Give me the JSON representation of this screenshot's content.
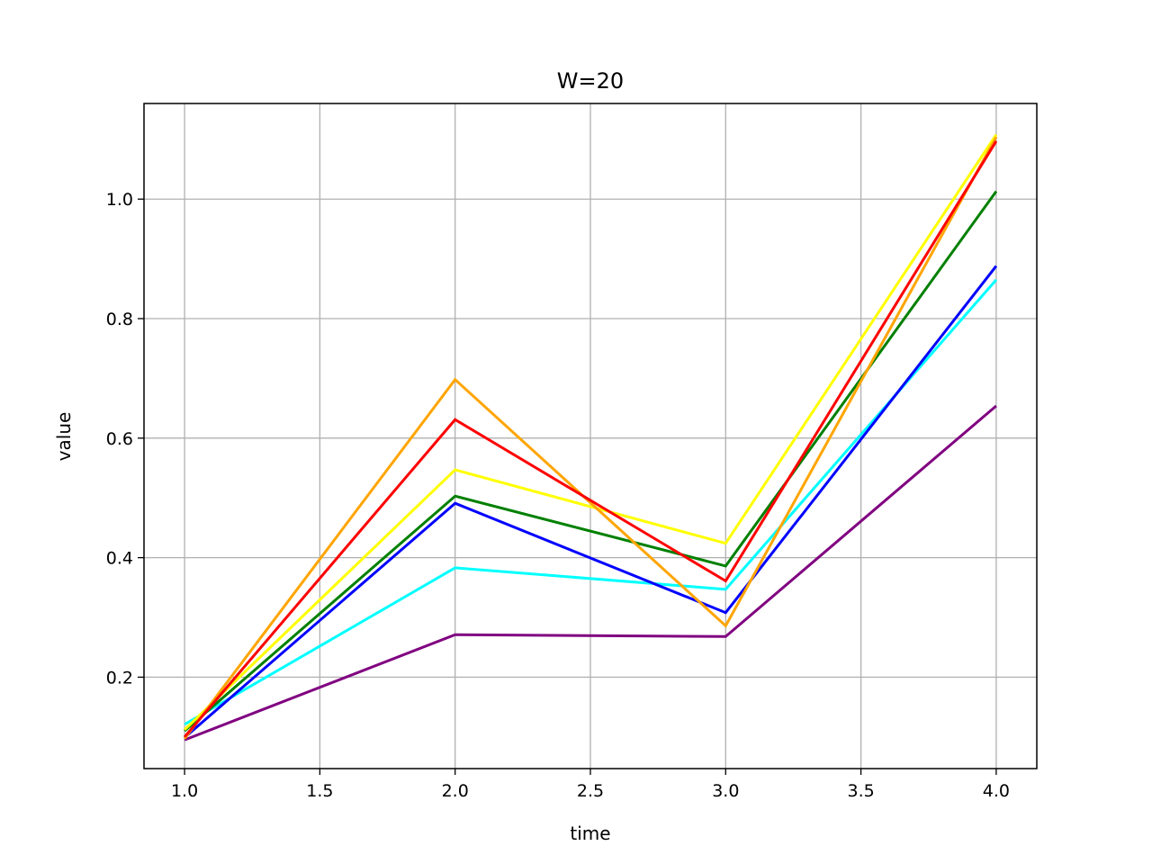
{
  "chart_data": {
    "type": "line",
    "title": "W=20",
    "xlabel": "time",
    "ylabel": "value",
    "x": [
      1.0,
      2.0,
      3.0,
      4.0
    ],
    "xlim": [
      0.85,
      4.15
    ],
    "ylim": [
      0.047,
      1.16
    ],
    "xticks": [
      1.0,
      1.5,
      2.0,
      2.5,
      3.0,
      3.5,
      4.0
    ],
    "xtick_labels": [
      "1.0",
      "1.5",
      "2.0",
      "2.5",
      "3.0",
      "3.5",
      "4.0"
    ],
    "yticks": [
      0.2,
      0.4,
      0.6,
      0.8,
      1.0
    ],
    "ytick_labels": [
      "0.2",
      "0.4",
      "0.6",
      "0.8",
      "1.0"
    ],
    "grid": true,
    "series": [
      {
        "name": "purple",
        "color": "#800080",
        "values": [
          0.095,
          0.271,
          0.268,
          0.654
        ]
      },
      {
        "name": "cyan",
        "color": "#00ffff",
        "values": [
          0.121,
          0.383,
          0.347,
          0.865
        ]
      },
      {
        "name": "blue",
        "color": "#0000ff",
        "values": [
          0.099,
          0.491,
          0.308,
          0.888
        ]
      },
      {
        "name": "green",
        "color": "#008000",
        "values": [
          0.11,
          0.503,
          0.386,
          1.013
        ]
      },
      {
        "name": "yellow",
        "color": "#ffff00",
        "values": [
          0.112,
          0.547,
          0.424,
          1.108
        ]
      },
      {
        "name": "orange",
        "color": "#ffa500",
        "values": [
          0.097,
          0.698,
          0.286,
          1.104
        ]
      },
      {
        "name": "red",
        "color": "#ff0000",
        "values": [
          0.1,
          0.631,
          0.361,
          1.097
        ]
      }
    ]
  }
}
